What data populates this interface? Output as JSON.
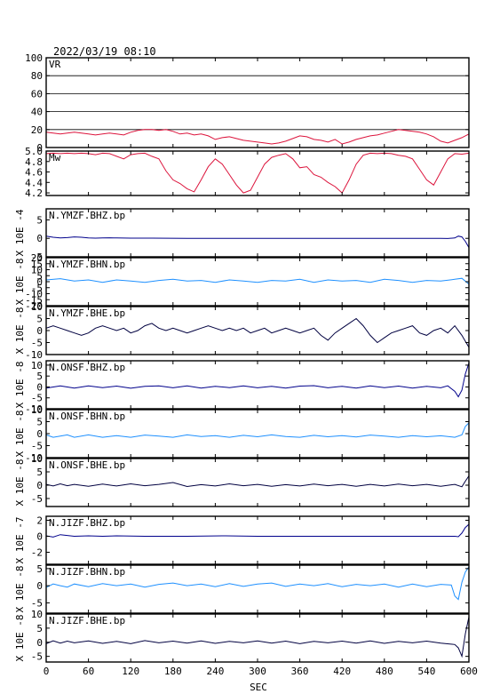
{
  "datetime": "2022/03/19 08:10",
  "xlabel": "SEC",
  "x_ticks": [
    0,
    60,
    120,
    180,
    240,
    300,
    360,
    420,
    480,
    540,
    600
  ],
  "colors": {
    "frame": "#000000",
    "vr": "#dc143c",
    "mw": "#dc143c",
    "dark": "#00008b",
    "light": "#1e90ff",
    "navy": "#000040"
  },
  "chart_data": [
    {
      "type": "line",
      "id": "vr",
      "label": "VR",
      "xlim": [
        0,
        600
      ],
      "ylim": [
        0,
        100
      ],
      "yticks": [
        0,
        20,
        40,
        60,
        80,
        100
      ],
      "grid": true,
      "color": "#dc143c",
      "x": [
        0,
        10,
        20,
        30,
        40,
        50,
        60,
        70,
        80,
        90,
        100,
        110,
        120,
        130,
        140,
        150,
        160,
        170,
        180,
        190,
        200,
        210,
        220,
        230,
        240,
        250,
        260,
        270,
        280,
        290,
        300,
        310,
        320,
        330,
        340,
        350,
        360,
        370,
        380,
        390,
        400,
        410,
        420,
        430,
        440,
        450,
        460,
        470,
        480,
        490,
        500,
        510,
        520,
        530,
        540,
        550,
        560,
        570,
        580,
        590,
        600
      ],
      "y": [
        17,
        16,
        15,
        16,
        17,
        16,
        15,
        14,
        15,
        16,
        15,
        14,
        17,
        19,
        20,
        20,
        19,
        20,
        18,
        15,
        16,
        14,
        15,
        13,
        9,
        11,
        12,
        10,
        8,
        7,
        6,
        5,
        4,
        5,
        7,
        10,
        13,
        12,
        9,
        8,
        6,
        9,
        4,
        6,
        9,
        11,
        13,
        14,
        16,
        18,
        20,
        19,
        18,
        17,
        15,
        12,
        7,
        5,
        8,
        11,
        15
      ]
    },
    {
      "type": "line",
      "id": "mw",
      "label": "Mw",
      "xlim": [
        0,
        600
      ],
      "ylim": [
        4.15,
        5.0
      ],
      "yticks": [
        4.2,
        4.4,
        4.6,
        4.8,
        5.0
      ],
      "grid": false,
      "color": "#dc143c",
      "x": [
        0,
        10,
        20,
        30,
        40,
        50,
        60,
        70,
        80,
        90,
        100,
        110,
        120,
        130,
        140,
        150,
        160,
        170,
        180,
        190,
        200,
        210,
        220,
        230,
        240,
        250,
        260,
        270,
        280,
        290,
        300,
        310,
        320,
        330,
        340,
        350,
        360,
        370,
        380,
        390,
        400,
        410,
        420,
        430,
        440,
        450,
        460,
        470,
        480,
        490,
        500,
        510,
        520,
        530,
        540,
        550,
        560,
        570,
        580,
        590,
        600
      ],
      "y": [
        4.95,
        4.96,
        4.95,
        4.96,
        4.95,
        4.96,
        4.95,
        4.93,
        4.96,
        4.95,
        4.9,
        4.85,
        4.93,
        4.95,
        4.96,
        4.9,
        4.85,
        4.62,
        4.45,
        4.38,
        4.28,
        4.22,
        4.45,
        4.7,
        4.85,
        4.75,
        4.55,
        4.35,
        4.2,
        4.25,
        4.5,
        4.75,
        4.88,
        4.92,
        4.95,
        4.85,
        4.68,
        4.7,
        4.55,
        4.5,
        4.4,
        4.32,
        4.2,
        4.45,
        4.75,
        4.92,
        4.96,
        4.95,
        4.96,
        4.95,
        4.92,
        4.9,
        4.85,
        4.65,
        4.45,
        4.35,
        4.6,
        4.85,
        4.95,
        4.94,
        4.96
      ]
    },
    {
      "type": "line",
      "id": "ymzf-bhz",
      "label": "N.YMZF.BHZ.bp",
      "unit": "X 10E -4",
      "xlim": [
        0,
        600
      ],
      "ylim": [
        -5,
        8
      ],
      "yticks": [
        -5,
        0,
        5
      ],
      "color": "#00008b",
      "x": [
        0,
        10,
        20,
        30,
        40,
        50,
        60,
        70,
        80,
        90,
        100,
        120,
        150,
        200,
        250,
        300,
        350,
        400,
        450,
        500,
        540,
        560,
        570,
        580,
        585,
        590,
        595,
        600
      ],
      "y": [
        0.6,
        0.3,
        0.1,
        0.2,
        0.4,
        0.3,
        0.1,
        0.05,
        0.1,
        0.15,
        0.1,
        0.05,
        0.05,
        0,
        0,
        0,
        0,
        0,
        0,
        0,
        0,
        0,
        -0.05,
        0.1,
        0.6,
        0.4,
        -0.8,
        -2.5
      ]
    },
    {
      "type": "line",
      "id": "ymzf-bhn",
      "label": "N.YMZF.BHN.bp",
      "unit": "X 10E -8",
      "xlim": [
        0,
        600
      ],
      "ylim": [
        -20,
        20
      ],
      "yticks": [
        -20,
        -15,
        -10,
        -5,
        0,
        5,
        10,
        15,
        20
      ],
      "color": "#1e90ff",
      "x": [
        0,
        20,
        40,
        60,
        80,
        100,
        120,
        140,
        160,
        180,
        200,
        220,
        240,
        260,
        280,
        300,
        320,
        340,
        360,
        380,
        400,
        420,
        440,
        460,
        480,
        500,
        520,
        540,
        560,
        580,
        590,
        600
      ],
      "y": [
        1.5,
        2.5,
        0.5,
        1.5,
        -0.5,
        1.5,
        0.5,
        -0.5,
        1,
        2,
        0.5,
        1,
        -0.5,
        1.5,
        0.5,
        -0.5,
        1,
        0.5,
        2,
        -0.5,
        1.5,
        0.5,
        1,
        -0.5,
        2,
        1,
        -0.5,
        1,
        0.5,
        2,
        2.8,
        -2
      ]
    },
    {
      "type": "line",
      "id": "ymzf-bhe",
      "label": "N.YMZF.BHE.bp",
      "unit": "X 10E -8",
      "xlim": [
        0,
        600
      ],
      "ylim": [
        -10,
        10
      ],
      "yticks": [
        -10,
        -5,
        0,
        5,
        10
      ],
      "color": "#000040",
      "x": [
        0,
        10,
        20,
        30,
        40,
        50,
        60,
        70,
        80,
        90,
        100,
        110,
        120,
        130,
        140,
        150,
        160,
        170,
        180,
        190,
        200,
        210,
        220,
        230,
        240,
        250,
        260,
        270,
        280,
        290,
        300,
        310,
        320,
        330,
        340,
        350,
        360,
        370,
        380,
        390,
        400,
        410,
        420,
        430,
        440,
        450,
        460,
        470,
        480,
        490,
        500,
        510,
        520,
        530,
        540,
        550,
        560,
        570,
        580,
        590,
        600
      ],
      "y": [
        1,
        2,
        1,
        0,
        -1,
        -2,
        -1,
        1,
        2,
        1,
        0,
        1,
        -1,
        0,
        2,
        3,
        1,
        0,
        1,
        0,
        -1,
        0,
        1,
        2,
        1,
        0,
        1,
        0,
        1,
        -1,
        0,
        1,
        -1,
        0,
        1,
        0,
        -1,
        0,
        1,
        -2,
        -4,
        -1,
        1,
        3,
        5,
        2,
        -2,
        -5,
        -3,
        -1,
        0,
        1,
        2,
        -1,
        -2,
        0,
        1,
        -1,
        2,
        -2,
        -7
      ]
    },
    {
      "type": "line",
      "id": "onsf-bhz",
      "label": "N.ONSF.BHZ.bp",
      "unit": "X 10E -8",
      "xlim": [
        0,
        600
      ],
      "ylim": [
        -10,
        12
      ],
      "yticks": [
        -10,
        -5,
        0,
        5,
        10
      ],
      "color": "#00008b",
      "x": [
        0,
        20,
        40,
        60,
        80,
        100,
        120,
        140,
        160,
        180,
        200,
        220,
        240,
        260,
        280,
        300,
        320,
        340,
        360,
        380,
        400,
        420,
        440,
        460,
        480,
        500,
        520,
        540,
        560,
        570,
        575,
        580,
        585,
        590,
        595,
        600
      ],
      "y": [
        -0.5,
        0.5,
        -0.5,
        0.5,
        -0.3,
        0.4,
        -0.6,
        0.3,
        0.5,
        -0.4,
        0.5,
        -0.5,
        0.3,
        -0.3,
        0.5,
        -0.4,
        0.3,
        -0.5,
        0.4,
        0.6,
        -0.4,
        0.3,
        -0.5,
        0.5,
        -0.3,
        0.4,
        -0.5,
        0.3,
        -0.4,
        0.5,
        -0.8,
        -2,
        -4.5,
        -1.5,
        6,
        11
      ]
    },
    {
      "type": "line",
      "id": "onsf-bhn",
      "label": "N.ONSF.BHN.bp",
      "unit": "X 10E -8",
      "xlim": [
        0,
        600
      ],
      "ylim": [
        -10,
        10
      ],
      "yticks": [
        -10,
        -5,
        0,
        5,
        10
      ],
      "color": "#1e90ff",
      "x": [
        0,
        10,
        20,
        30,
        40,
        60,
        80,
        100,
        120,
        140,
        160,
        180,
        200,
        220,
        240,
        260,
        280,
        300,
        320,
        340,
        360,
        380,
        400,
        420,
        440,
        460,
        480,
        500,
        520,
        540,
        560,
        580,
        590,
        595,
        600
      ],
      "y": [
        -0.5,
        -1.5,
        -1,
        -0.5,
        -1.5,
        -0.5,
        -1.5,
        -0.8,
        -1.5,
        -0.6,
        -1,
        -1.5,
        -0.5,
        -1.2,
        -0.8,
        -1.5,
        -0.7,
        -1.3,
        -0.5,
        -1.2,
        -1.5,
        -0.7,
        -1.3,
        -0.8,
        -1.4,
        -0.6,
        -1,
        -1.5,
        -0.8,
        -1.3,
        -0.9,
        -1.5,
        -0.5,
        3,
        4.5
      ]
    },
    {
      "type": "line",
      "id": "onsf-bhe",
      "label": "N.ONSF.BHE.bp",
      "unit": "X 10E -8",
      "xlim": [
        0,
        600
      ],
      "ylim": [
        -8,
        10
      ],
      "yticks": [
        -5,
        0,
        5,
        10
      ],
      "color": "#000040",
      "x": [
        0,
        10,
        20,
        30,
        40,
        60,
        80,
        100,
        120,
        140,
        160,
        180,
        200,
        220,
        240,
        260,
        280,
        300,
        320,
        340,
        360,
        380,
        400,
        420,
        440,
        460,
        480,
        500,
        520,
        540,
        560,
        580,
        590,
        595,
        600
      ],
      "y": [
        0.3,
        -0.3,
        0.5,
        -0.2,
        0.3,
        -0.4,
        0.4,
        -0.3,
        0.5,
        -0.2,
        0.3,
        1,
        -0.5,
        0.2,
        -0.3,
        0.5,
        -0.2,
        0.3,
        -0.4,
        0.2,
        -0.3,
        0.4,
        -0.2,
        0.3,
        -0.4,
        0.3,
        -0.3,
        0.4,
        -0.2,
        0.3,
        -0.4,
        0.3,
        -0.6,
        1.5,
        3.5
      ]
    },
    {
      "type": "line",
      "id": "jizf-bhz",
      "label": "N.JIZF.BHZ.bp",
      "unit": "X 10E -7",
      "xlim": [
        0,
        600
      ],
      "ylim": [
        -3.5,
        2.5
      ],
      "yticks": [
        -2,
        0,
        2
      ],
      "color": "#00008b",
      "x": [
        0,
        10,
        20,
        30,
        40,
        60,
        80,
        100,
        140,
        200,
        250,
        300,
        350,
        400,
        450,
        500,
        550,
        580,
        585,
        590,
        595,
        600
      ],
      "y": [
        0.05,
        -0.1,
        0.2,
        0.1,
        0,
        0.05,
        0,
        0.05,
        0,
        0,
        0.05,
        0,
        0,
        0,
        0,
        0,
        0,
        0,
        -0.05,
        0.4,
        1.1,
        1.5
      ]
    },
    {
      "type": "line",
      "id": "jizf-bhn",
      "label": "N.JIZF.BHN.bp",
      "unit": "X 10E -8",
      "xlim": [
        0,
        600
      ],
      "ylim": [
        -8,
        6
      ],
      "yticks": [
        -5,
        0,
        5
      ],
      "color": "#1e90ff",
      "x": [
        0,
        10,
        20,
        30,
        40,
        60,
        80,
        100,
        120,
        140,
        160,
        180,
        200,
        220,
        240,
        260,
        280,
        300,
        320,
        340,
        360,
        380,
        400,
        420,
        440,
        460,
        480,
        500,
        520,
        540,
        560,
        575,
        580,
        585,
        590,
        595,
        600
      ],
      "y": [
        -0.5,
        0.5,
        0,
        -0.4,
        0.5,
        -0.3,
        0.6,
        0,
        0.5,
        -0.4,
        0.4,
        0.8,
        0,
        0.5,
        -0.3,
        0.6,
        -0.2,
        0.5,
        0.8,
        -0.2,
        0.5,
        0,
        0.6,
        -0.3,
        0.4,
        0,
        0.5,
        -0.4,
        0.5,
        -0.3,
        0.4,
        0.2,
        -3,
        -4,
        1,
        4,
        5.5
      ]
    },
    {
      "type": "line",
      "id": "jizf-bhe",
      "label": "N.JIZF.BHE.bp",
      "unit": "X 10E -8",
      "xlim": [
        0,
        600
      ],
      "ylim": [
        -7,
        10
      ],
      "yticks": [
        -5,
        0,
        5,
        10
      ],
      "color": "#000040",
      "x": [
        0,
        10,
        20,
        30,
        40,
        60,
        80,
        100,
        120,
        140,
        160,
        180,
        200,
        220,
        240,
        260,
        280,
        300,
        320,
        340,
        360,
        380,
        400,
        420,
        440,
        460,
        480,
        500,
        520,
        540,
        560,
        580,
        585,
        590,
        595,
        600
      ],
      "y": [
        -0.5,
        0.5,
        -0.3,
        0.4,
        -0.2,
        0.5,
        -0.4,
        0.3,
        -0.5,
        0.6,
        -0.2,
        0.4,
        -0.3,
        0.5,
        -0.4,
        0.3,
        -0.2,
        0.5,
        -0.3,
        0.4,
        -0.5,
        0.3,
        -0.2,
        0.4,
        -0.3,
        0.5,
        -0.4,
        0.3,
        -0.2,
        0.4,
        -0.3,
        -0.8,
        -2,
        -5,
        3,
        9
      ]
    }
  ]
}
